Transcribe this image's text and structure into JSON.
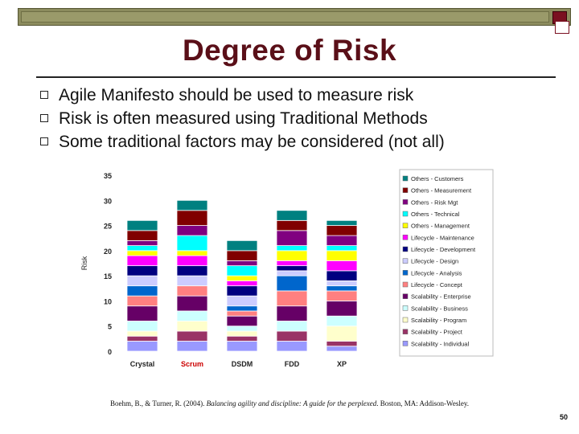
{
  "slide": {
    "title": "Degree of Risk",
    "bullets": [
      "Agile Manifesto should be used to measure risk",
      "Risk is often measured using Traditional Methods",
      "Some traditional factors may be considered (not all)"
    ],
    "citation_prefix": "Boehm, B., & Turner, R. (2004). ",
    "citation_title": "Balancing agility and discipline: A guide for the perplexed",
    "citation_suffix": ". Boston, MA: Addison-Wesley.",
    "page_number": "50",
    "colors": {
      "title": "#5a0f18",
      "highlight_category": "#cc0000"
    }
  },
  "chart_data": {
    "type": "bar",
    "stacked": true,
    "ylabel": "Risk",
    "ylim": [
      0,
      35
    ],
    "yticks": [
      0,
      5,
      10,
      15,
      20,
      25,
      30,
      35
    ],
    "grid": false,
    "legend_position": "right",
    "categories": [
      "Crystal",
      "Scrum",
      "DSDM",
      "FDD",
      "XP"
    ],
    "highlight_category": "Scrum",
    "series": [
      {
        "name": "Scalability - Individual",
        "color": "#9999ff",
        "values": [
          2,
          2,
          2,
          2,
          1
        ]
      },
      {
        "name": "Scalability - Project",
        "color": "#993366",
        "values": [
          1,
          2,
          1,
          2,
          1
        ]
      },
      {
        "name": "Scalability - Program",
        "color": "#ffffcc",
        "values": [
          1,
          2,
          1,
          0,
          3
        ]
      },
      {
        "name": "Scalability - Business",
        "color": "#ccffff",
        "values": [
          2,
          2,
          1,
          2,
          2
        ]
      },
      {
        "name": "Scalability - Enterprise",
        "color": "#660066",
        "values": [
          3,
          3,
          2,
          3,
          3
        ]
      },
      {
        "name": "Lifecycle - Concept",
        "color": "#ff8080",
        "values": [
          2,
          2,
          1,
          3,
          2
        ]
      },
      {
        "name": "Lifecycle - Analysis",
        "color": "#0066cc",
        "values": [
          2,
          0,
          1,
          3,
          1
        ]
      },
      {
        "name": "Lifecycle - Design",
        "color": "#ccccff",
        "values": [
          2,
          2,
          2,
          1,
          1
        ]
      },
      {
        "name": "Lifecycle - Development",
        "color": "#000080",
        "values": [
          2,
          2,
          2,
          1,
          2
        ]
      },
      {
        "name": "Lifecycle - Maintenance",
        "color": "#ff00ff",
        "values": [
          2,
          2,
          1,
          1,
          2
        ]
      },
      {
        "name": "Others - Management",
        "color": "#ffff00",
        "values": [
          1,
          1,
          1,
          2,
          2
        ]
      },
      {
        "name": "Others - Technical",
        "color": "#00ffff",
        "values": [
          1,
          3,
          2,
          1,
          1
        ]
      },
      {
        "name": "Others - Risk Mgt",
        "color": "#800080",
        "values": [
          1,
          2,
          1,
          3,
          2
        ]
      },
      {
        "name": "Others - Measurement",
        "color": "#800000",
        "values": [
          2,
          3,
          2,
          2,
          2
        ]
      },
      {
        "name": "Others - Customers",
        "color": "#008080",
        "values": [
          2,
          2,
          2,
          2,
          1
        ]
      }
    ]
  }
}
